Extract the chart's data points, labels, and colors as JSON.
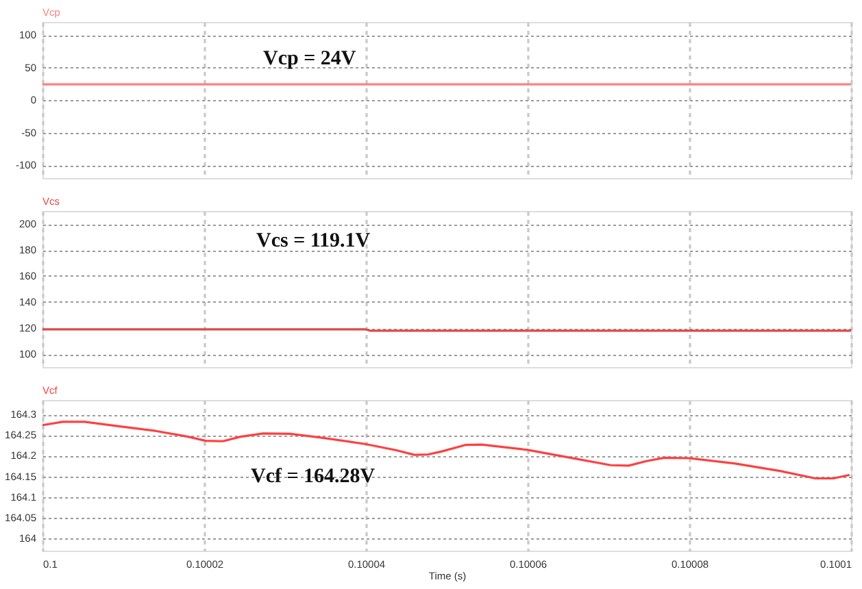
{
  "chart_data": [
    {
      "type": "line",
      "title": "Vcp",
      "x": [
        0.1,
        0.1001
      ],
      "series": [
        {
          "color": "#ff8080",
          "values": [
            24,
            24
          ]
        }
      ],
      "xlim": [
        0.1,
        0.1001
      ],
      "xticks": [
        0.1,
        0.10002,
        0.10004,
        0.10006,
        0.10008,
        0.1001
      ],
      "ylim": [
        -120,
        120
      ],
      "yticks": [
        -100,
        -50,
        0,
        50,
        100
      ],
      "grid": true,
      "tick_labels": "y",
      "annotations": [
        "Vcp = 24V"
      ]
    },
    {
      "type": "line",
      "title": "Vcs",
      "x": [
        0.1,
        0.10004,
        0.1000405,
        0.1001
      ],
      "series": [
        {
          "color": "#e04848",
          "values": [
            119,
            119,
            118,
            118
          ]
        }
      ],
      "xlim": [
        0.1,
        0.1001
      ],
      "xticks": [
        0.1,
        0.10002,
        0.10004,
        0.10006,
        0.10008,
        0.1001
      ],
      "ylim": [
        90,
        210
      ],
      "yticks": [
        100,
        120,
        140,
        160,
        180,
        200
      ],
      "grid": true,
      "tick_labels": "y",
      "annotations": [
        "Vcs = 119.1V"
      ]
    },
    {
      "type": "line",
      "title": "Vcf",
      "x": [
        0.1,
        0.1000025,
        0.1000052,
        0.1000096,
        0.100014,
        0.100018,
        0.1000202,
        0.1000223,
        0.1000245,
        0.1000273,
        0.1000306,
        0.1000344,
        0.10004,
        0.1000438,
        0.100046,
        0.1000477,
        0.1000493,
        0.1000523,
        0.1000543,
        0.10006,
        0.1000653,
        0.1000703,
        0.1000725,
        0.1000747,
        0.1000769,
        0.10008,
        0.1000857,
        0.1000912,
        0.1000956,
        0.1000978,
        0.1000997
      ],
      "series": [
        {
          "color": "#ff4040",
          "values": [
            164.274,
            164.282,
            164.282,
            164.271,
            164.26,
            164.246,
            164.236,
            164.235,
            164.246,
            164.254,
            164.253,
            164.244,
            164.228,
            164.213,
            164.202,
            164.203,
            164.21,
            164.226,
            164.227,
            164.214,
            164.195,
            164.177,
            164.176,
            164.187,
            164.195,
            164.194,
            164.181,
            164.163,
            164.145,
            164.145,
            164.153
          ]
        }
      ],
      "xlim": [
        0.1,
        0.1001
      ],
      "xticks": [
        0.1,
        0.10002,
        0.10004,
        0.10006,
        0.10008,
        0.1001
      ],
      "ylim": [
        163.97,
        164.335
      ],
      "yticks": [
        164,
        164.05,
        164.1,
        164.15,
        164.2,
        164.25,
        164.3
      ],
      "grid": true,
      "xlabel": "Time (s)",
      "annotations": [
        "Vcf = 164.28V"
      ]
    }
  ]
}
